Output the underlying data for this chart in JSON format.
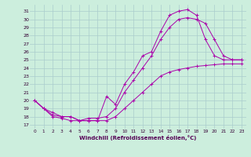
{
  "xlabel": "Windchill (Refroidissement éolien,°C)",
  "bg_color": "#cceedd",
  "grid_color": "#aacccc",
  "line_color": "#aa00aa",
  "xlim": [
    -0.5,
    23.5
  ],
  "ylim": [
    16.5,
    31.8
  ],
  "yticks": [
    17,
    18,
    19,
    20,
    21,
    22,
    23,
    24,
    25,
    26,
    27,
    28,
    29,
    30,
    31
  ],
  "xticks": [
    0,
    1,
    2,
    3,
    4,
    5,
    6,
    7,
    8,
    9,
    10,
    11,
    12,
    13,
    14,
    15,
    16,
    17,
    18,
    19,
    20,
    21,
    22,
    23
  ],
  "series1_x": [
    0,
    1,
    2,
    3,
    4,
    5,
    6,
    7,
    8,
    9,
    10,
    11,
    12,
    13,
    14,
    15,
    16,
    17,
    18,
    19,
    20,
    21,
    22,
    23
  ],
  "series1_y": [
    20,
    19,
    18,
    17.8,
    17.5,
    17.5,
    17.5,
    17.5,
    20.5,
    19.5,
    22,
    23.5,
    25.5,
    26,
    28.5,
    30.5,
    31,
    31.2,
    30.5,
    27.5,
    25.5,
    25,
    25,
    25
  ],
  "series2_x": [
    0,
    1,
    2,
    3,
    4,
    5,
    6,
    7,
    8,
    9,
    10,
    11,
    12,
    13,
    14,
    15,
    16,
    17,
    18,
    19,
    20,
    21,
    22,
    23
  ],
  "series2_y": [
    20,
    19,
    18.2,
    18,
    18,
    17.5,
    17.8,
    17.8,
    18,
    19,
    21,
    22.5,
    24,
    25.5,
    27.5,
    29,
    30,
    30.2,
    30,
    29.5,
    27.5,
    25.5,
    25,
    25
  ],
  "series3_x": [
    0,
    1,
    2,
    3,
    4,
    5,
    6,
    7,
    8,
    9,
    10,
    11,
    12,
    13,
    14,
    15,
    16,
    17,
    18,
    19,
    20,
    21,
    22,
    23
  ],
  "series3_y": [
    20,
    19,
    18.5,
    18,
    18,
    17.5,
    17.5,
    17.5,
    17.5,
    18,
    19,
    20,
    21,
    22,
    23,
    23.5,
    23.8,
    24,
    24.2,
    24.3,
    24.4,
    24.5,
    24.5,
    24.5
  ]
}
